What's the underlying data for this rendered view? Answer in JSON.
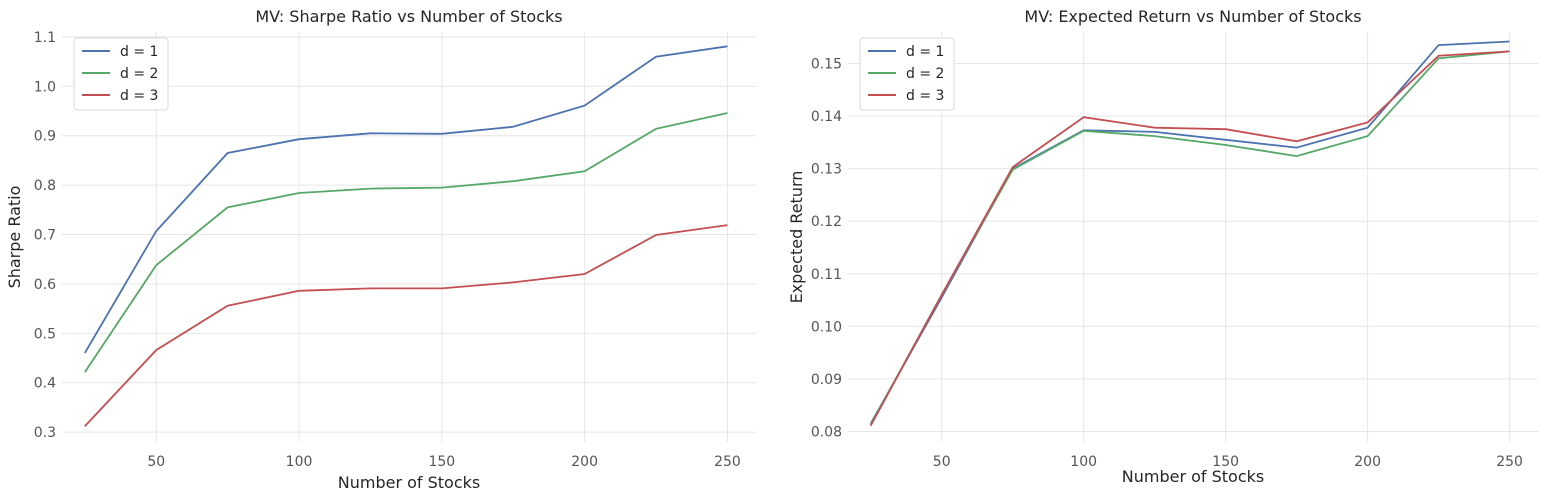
{
  "chart_data": [
    {
      "type": "line",
      "title": "MV: Sharpe Ratio vs Number of Stocks",
      "xlabel": "Number of Stocks",
      "ylabel": "Sharpe Ratio",
      "xlim": [
        17,
        260
      ],
      "ylim": [
        0.28,
        1.11
      ],
      "xticks": [
        50,
        100,
        150,
        200,
        250
      ],
      "yticks": [
        0.3,
        0.4,
        0.5,
        0.6,
        0.7,
        0.8,
        0.9,
        1.0,
        1.1
      ],
      "yticks_labels": [
        "0.3",
        "0.4",
        "0.5",
        "0.6",
        "0.7",
        "0.8",
        "0.9",
        "1.0",
        "1.1"
      ],
      "grid": true,
      "legend_position": "top-left",
      "x": [
        25,
        50,
        75,
        100,
        125,
        150,
        175,
        200,
        225,
        250
      ],
      "series": [
        {
          "name": "d = 1",
          "color": "#4c72b0",
          "values": [
            0.46,
            0.707,
            0.865,
            0.893,
            0.905,
            0.904,
            0.918,
            0.961,
            1.06,
            1.081
          ]
        },
        {
          "name": "d = 2",
          "color": "#55a868",
          "values": [
            0.421,
            0.638,
            0.755,
            0.784,
            0.793,
            0.795,
            0.808,
            0.828,
            0.914,
            0.946
          ]
        },
        {
          "name": "d = 3",
          "color": "#c44e52",
          "values": [
            0.312,
            0.466,
            0.556,
            0.586,
            0.591,
            0.591,
            0.603,
            0.62,
            0.699,
            0.719
          ]
        }
      ]
    },
    {
      "type": "line",
      "title": "MV: Expected Return vs Number of Stocks",
      "xlabel": "Number of Stocks",
      "ylabel": "Expected Return",
      "xlim": [
        17,
        260
      ],
      "ylim": [
        0.078,
        0.156
      ],
      "xticks": [
        50,
        100,
        150,
        200,
        250
      ],
      "yticks": [
        0.08,
        0.09,
        0.1,
        0.11,
        0.12,
        0.13,
        0.14,
        0.15
      ],
      "yticks_labels": [
        "0.08",
        "0.09",
        "0.10",
        "0.11",
        "0.12",
        "0.13",
        "0.14",
        "0.15"
      ],
      "grid": true,
      "legend_position": "top-left",
      "x": [
        25,
        50,
        75,
        100,
        125,
        150,
        175,
        200,
        225,
        250
      ],
      "series": [
        {
          "name": "d = 1",
          "color": "#4c72b0",
          "values": [
            0.0815,
            0.1055,
            0.13,
            0.1373,
            0.137,
            0.1355,
            0.134,
            0.1378,
            0.1535,
            0.1542
          ]
        },
        {
          "name": "d = 2",
          "color": "#55a868",
          "values": [
            0.0813,
            0.106,
            0.1298,
            0.1372,
            0.1362,
            0.1345,
            0.1324,
            0.1362,
            0.151,
            0.1523
          ]
        },
        {
          "name": "d = 3",
          "color": "#c44e52",
          "values": [
            0.0811,
            0.106,
            0.1303,
            0.1398,
            0.1378,
            0.1375,
            0.1352,
            0.1388,
            0.1515,
            0.1523
          ]
        }
      ]
    }
  ]
}
